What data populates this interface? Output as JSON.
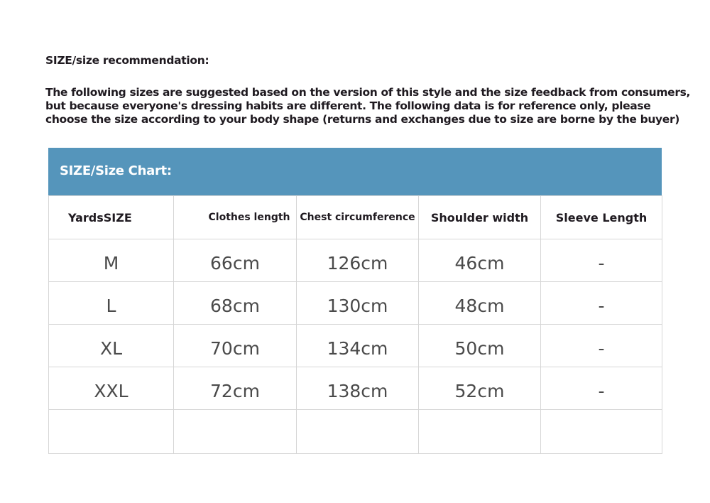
{
  "heading": "SIZE/size recommendation:",
  "intro_lines": [
    "The following sizes are suggested based on the version of this style and the size feedback from consumers,",
    "but because everyone's dressing habits are different. The following data is for reference only, please",
    "choose the size according to your body shape (returns and exchanges due to size are borne by the buyer)"
  ],
  "chart_title": "SIZE/Size Chart:",
  "colors": {
    "banner": "#5595bb",
    "text": "#1f1a20"
  },
  "columns": [
    "YardsSIZE",
    "Clothes length",
    "Chest circumference",
    "Shoulder width",
    "Sleeve Length"
  ],
  "rows": [
    [
      "M",
      "66cm",
      "126cm",
      "46cm",
      "-"
    ],
    [
      "L",
      "68cm",
      "130cm",
      "48cm",
      "-"
    ],
    [
      "XL",
      "70cm",
      "134cm",
      "50cm",
      "-"
    ],
    [
      "XXL",
      "72cm",
      "138cm",
      "52cm",
      "-"
    ]
  ]
}
